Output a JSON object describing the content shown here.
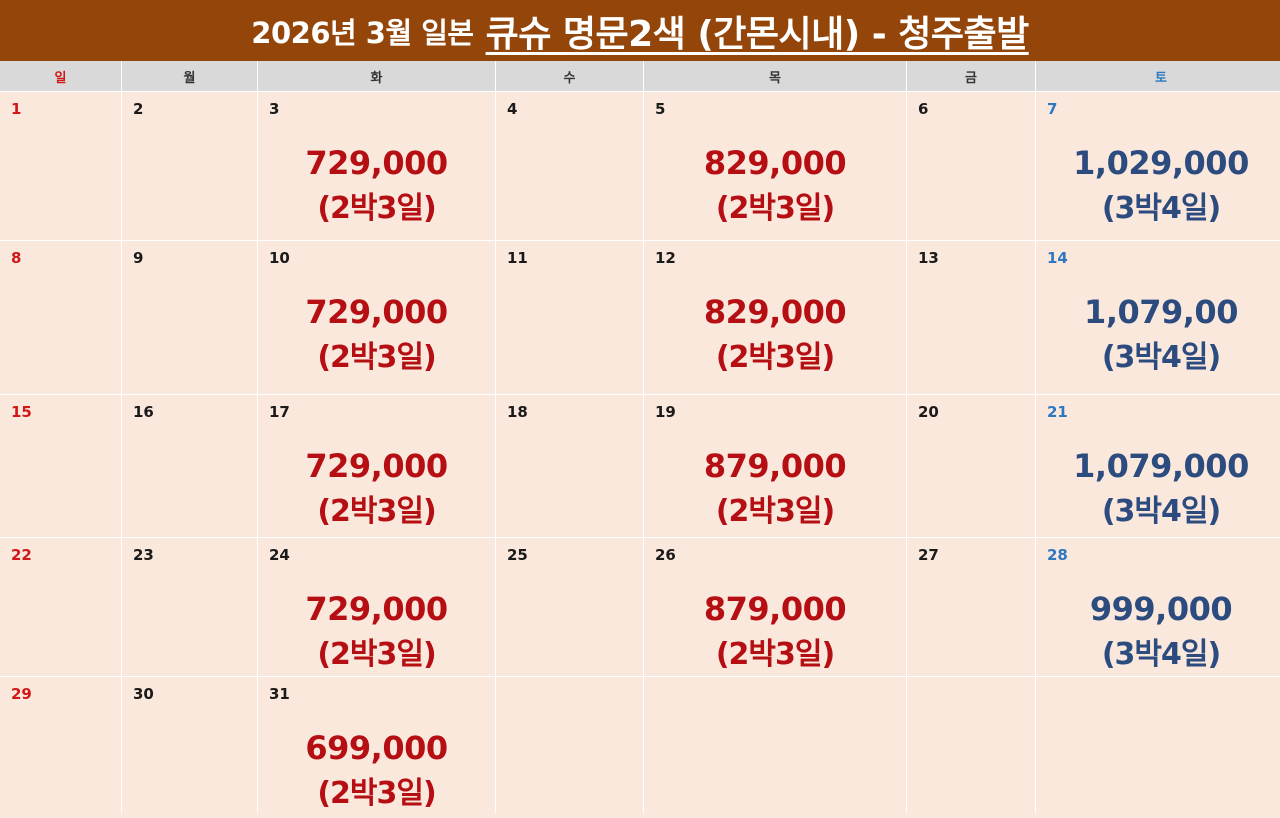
{
  "title": {
    "prefix": "2026년 3월 일본",
    "main": "큐슈 명문2색 (간몬시내) - 청주출발"
  },
  "weekdays": [
    {
      "label": "일"
    },
    {
      "label": "월"
    },
    {
      "label": "화"
    },
    {
      "label": "수"
    },
    {
      "label": "목"
    },
    {
      "label": "금"
    },
    {
      "label": "토"
    }
  ],
  "colors": {
    "banner": "#944509",
    "cell_bg": "#fbe8dc",
    "sunday": "#d01818",
    "saturday": "#2e78c2",
    "price_red": "#b50f14",
    "price_blue": "#2c4b7e"
  },
  "weeks": [
    [
      {
        "day": "1"
      },
      {
        "day": "2"
      },
      {
        "day": "3",
        "price": "729,000",
        "nights": "(2박3일)"
      },
      {
        "day": "4"
      },
      {
        "day": "5",
        "price": "829,000",
        "nights": "(2박3일)"
      },
      {
        "day": "6"
      },
      {
        "day": "7",
        "price": "1,029,000",
        "nights": "(3박4일)"
      }
    ],
    [
      {
        "day": "8"
      },
      {
        "day": "9"
      },
      {
        "day": "10",
        "price": "729,000",
        "nights": "(2박3일)"
      },
      {
        "day": "11"
      },
      {
        "day": "12",
        "price": "829,000",
        "nights": "(2박3일)"
      },
      {
        "day": "13"
      },
      {
        "day": "14",
        "price": "1,079,00",
        "nights": "(3박4일)"
      }
    ],
    [
      {
        "day": "15"
      },
      {
        "day": "16"
      },
      {
        "day": "17",
        "price": "729,000",
        "nights": "(2박3일)"
      },
      {
        "day": "18"
      },
      {
        "day": "19",
        "price": "879,000",
        "nights": "(2박3일)"
      },
      {
        "day": "20"
      },
      {
        "day": "21",
        "price": "1,079,000",
        "nights": "(3박4일)"
      }
    ],
    [
      {
        "day": "22"
      },
      {
        "day": "23"
      },
      {
        "day": "24",
        "price": "729,000",
        "nights": "(2박3일)"
      },
      {
        "day": "25"
      },
      {
        "day": "26",
        "price": "879,000",
        "nights": "(2박3일)"
      },
      {
        "day": "27"
      },
      {
        "day": "28",
        "price": "999,000",
        "nights": "(3박4일)"
      }
    ],
    [
      {
        "day": "29"
      },
      {
        "day": "30"
      },
      {
        "day": "31",
        "price": "699,000",
        "nights": "(2박3일)"
      },
      {
        "day": ""
      },
      {
        "day": ""
      },
      {
        "day": ""
      },
      {
        "day": ""
      }
    ]
  ]
}
